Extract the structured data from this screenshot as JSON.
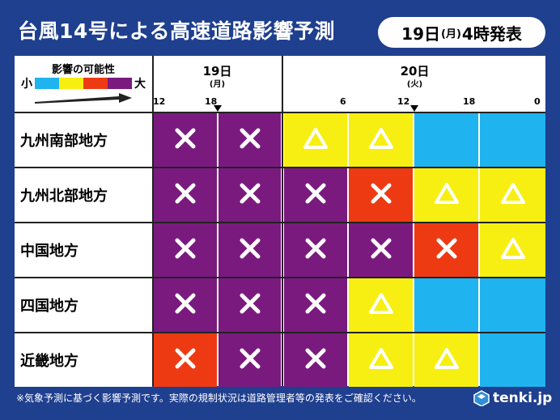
{
  "title": "台風14号による高速道路影響予測",
  "issue": {
    "day": "19日",
    "weekday": "(月)",
    "time": "4時発表"
  },
  "legend": {
    "title": "影響の可能性",
    "small": "小",
    "big": "大",
    "colors": [
      "#1fb3f0",
      "#f7ef11",
      "#ee3a12",
      "#7a1a7f"
    ]
  },
  "days": [
    {
      "label": "19日",
      "weekday": "(月)"
    },
    {
      "label": "20日",
      "weekday": "(火)"
    }
  ],
  "hour_ticks": [
    "12",
    "18",
    "6",
    "12",
    "18",
    "0"
  ],
  "colors": {
    "purple": "#7a1a7f",
    "red": "#ee3a12",
    "yellow": "#f7ef11",
    "blue": "#1fb3f0",
    "background": "#1f3f8f"
  },
  "regions": [
    {
      "name": "九州南部地方",
      "cells": [
        {
          "level": "purple",
          "symbol": "×"
        },
        {
          "level": "purple",
          "symbol": "×"
        },
        {
          "level": "yellow",
          "symbol": "△"
        },
        {
          "level": "yellow",
          "symbol": "△"
        },
        {
          "level": "blue",
          "symbol": ""
        },
        {
          "level": "blue",
          "symbol": ""
        }
      ]
    },
    {
      "name": "九州北部地方",
      "cells": [
        {
          "level": "purple",
          "symbol": "×"
        },
        {
          "level": "purple",
          "symbol": "×"
        },
        {
          "level": "purple",
          "symbol": "×"
        },
        {
          "level": "red",
          "symbol": "×"
        },
        {
          "level": "yellow",
          "symbol": "△"
        },
        {
          "level": "yellow",
          "symbol": "△"
        }
      ]
    },
    {
      "name": "中国地方",
      "cells": [
        {
          "level": "purple",
          "symbol": "×"
        },
        {
          "level": "purple",
          "symbol": "×"
        },
        {
          "level": "purple",
          "symbol": "×"
        },
        {
          "level": "purple",
          "symbol": "×"
        },
        {
          "level": "red",
          "symbol": "×"
        },
        {
          "level": "yellow",
          "symbol": "△"
        }
      ]
    },
    {
      "name": "四国地方",
      "cells": [
        {
          "level": "purple",
          "symbol": "×"
        },
        {
          "level": "purple",
          "symbol": "×"
        },
        {
          "level": "purple",
          "symbol": "×"
        },
        {
          "level": "yellow",
          "symbol": "△"
        },
        {
          "level": "blue",
          "symbol": ""
        },
        {
          "level": "blue",
          "symbol": ""
        }
      ]
    },
    {
      "name": "近畿地方",
      "cells": [
        {
          "level": "red",
          "symbol": "×"
        },
        {
          "level": "purple",
          "symbol": "×"
        },
        {
          "level": "purple",
          "symbol": "×"
        },
        {
          "level": "yellow",
          "symbol": "△"
        },
        {
          "level": "yellow",
          "symbol": "△"
        },
        {
          "level": "blue",
          "symbol": ""
        }
      ]
    }
  ],
  "footnote": "※気象予測に基づく影響予測です。実際の規制状況は道路管理者等の発表をご確認ください。",
  "logo": "tenki.jp"
}
